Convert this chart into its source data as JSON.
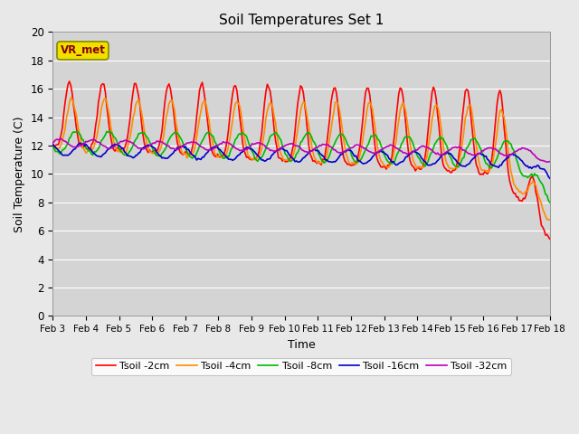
{
  "title": "Soil Temperatures Set 1",
  "xlabel": "Time",
  "ylabel": "Soil Temperature (C)",
  "ylim": [
    0,
    20
  ],
  "x_labels": [
    "Feb 3",
    "Feb 4",
    "Feb 5",
    "Feb 6",
    "Feb 7",
    "Feb 8",
    "Feb 9",
    "Feb 10",
    "Feb 11",
    "Feb 12",
    "Feb 13",
    "Feb 14",
    "Feb 15",
    "Feb 16",
    "Feb 17",
    "Feb 18"
  ],
  "series_colors": [
    "#ff0000",
    "#ff8c00",
    "#00bb00",
    "#0000cc",
    "#bb00bb"
  ],
  "series_labels": [
    "Tsoil -2cm",
    "Tsoil -4cm",
    "Tsoil -8cm",
    "Tsoil -16cm",
    "Tsoil -32cm"
  ],
  "legend_label": "VR_met",
  "n_days": 15,
  "pts_per_day": 24
}
